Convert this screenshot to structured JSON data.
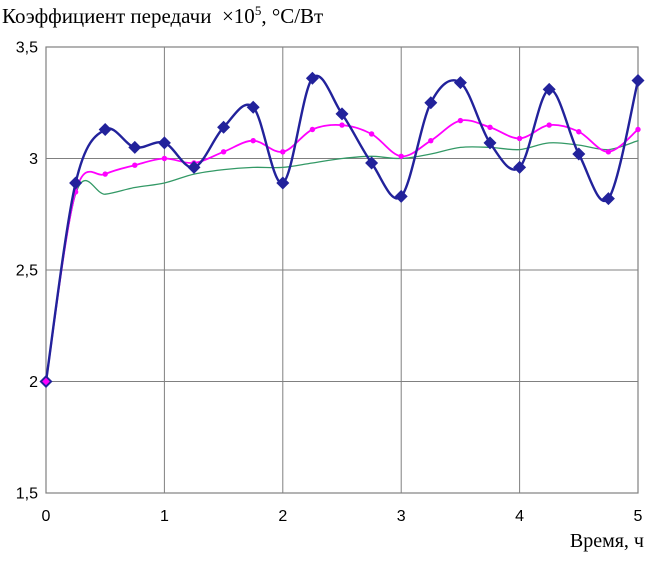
{
  "chart_data": {
    "type": "line",
    "title": {
      "prefix": "Коэффициент передачи  ×10",
      "superscript": "5",
      "suffix": ", °С/Вт"
    },
    "xlabel": "Время, ч",
    "ylabel": "",
    "xlim": [
      0,
      5
    ],
    "ylim": [
      1.5,
      3.5
    ],
    "grid": true,
    "legend": "none",
    "grid_color": "#808080",
    "text_color": "#000000",
    "background_color": "#FFFFFF",
    "x_ticks": [
      0,
      1,
      2,
      3,
      4,
      5
    ],
    "x_tick_labels": [
      "0",
      "1",
      "2",
      "3",
      "4",
      "5"
    ],
    "y_ticks": [
      1.5,
      2,
      2.5,
      3,
      3.5
    ],
    "y_tick_labels": [
      "1,5",
      "2",
      "2,5",
      "3",
      "3,5"
    ],
    "x": [
      0,
      0.25,
      0.5,
      0.75,
      1,
      1.25,
      1.5,
      1.75,
      2,
      2.25,
      2.5,
      2.75,
      3,
      3.25,
      3.5,
      3.75,
      4,
      4.25,
      4.5,
      4.75,
      5
    ],
    "series": [
      {
        "name": "navy-diamond-series",
        "color": "#22229B",
        "marker": "diamond",
        "line_width": 2.4,
        "values": [
          2.0,
          2.89,
          3.13,
          3.05,
          3.07,
          2.96,
          3.14,
          3.23,
          2.89,
          3.36,
          3.2,
          2.98,
          2.83,
          3.25,
          3.34,
          3.07,
          2.96,
          3.31,
          3.02,
          2.82,
          3.35
        ]
      },
      {
        "name": "magenta-dot-series",
        "color": "#FF00FF",
        "marker": "circle",
        "line_width": 1.8,
        "values": [
          2.0,
          2.85,
          2.93,
          2.97,
          3.0,
          2.98,
          3.03,
          3.08,
          3.03,
          3.13,
          3.15,
          3.11,
          3.01,
          3.08,
          3.17,
          3.14,
          3.09,
          3.15,
          3.12,
          3.03,
          3.13
        ]
      },
      {
        "name": "green-smooth-series",
        "color": "#339966",
        "marker": "none",
        "line_width": 1.3,
        "values": [
          2.0,
          2.84,
          2.84,
          2.87,
          2.89,
          2.93,
          2.95,
          2.96,
          2.96,
          2.98,
          3.0,
          3.01,
          3.0,
          3.02,
          3.05,
          3.05,
          3.04,
          3.07,
          3.06,
          3.04,
          3.08
        ]
      }
    ]
  }
}
